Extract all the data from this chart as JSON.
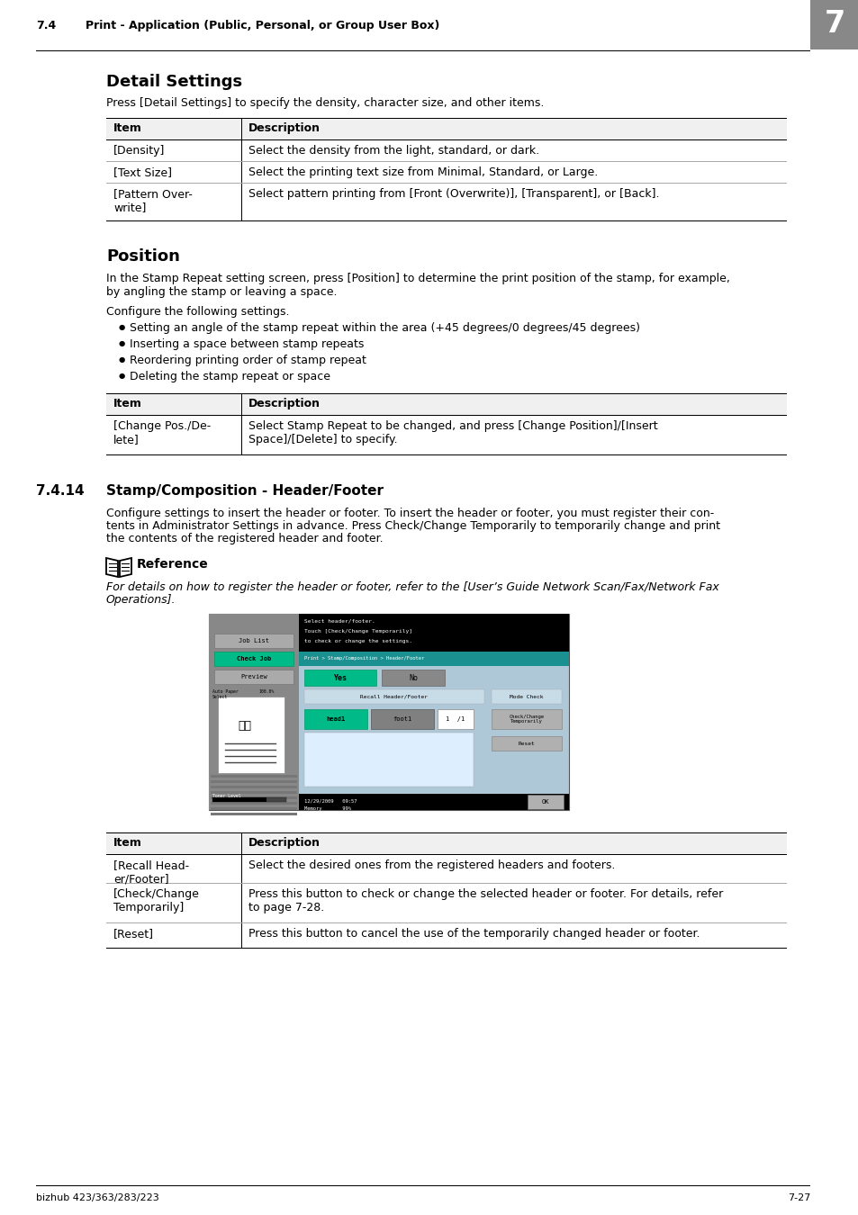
{
  "page_header_section": "7.4",
  "page_header_text": "Print - Application (Public, Personal, or Group User Box)",
  "page_number_box": "7",
  "page_footer_left": "bizhub 423/363/283/223",
  "page_footer_right": "7-27",
  "bg_color": "#ffffff",
  "section1_title": "Detail Settings",
  "section1_intro": "Press [Detail Settings] to specify the density, character size, and other items.",
  "table1_rows": [
    [
      "[Density]",
      "Select the density from the light, standard, or dark."
    ],
    [
      "[Text Size]",
      "Select the printing text size from Minimal, Standard, or Large."
    ],
    [
      "[Pattern Over-\nwrite]",
      "Select pattern printing from [Front (Overwrite)], [Transparent], or [Back]."
    ]
  ],
  "section2_title": "Position",
  "section2_intro1": "In the Stamp Repeat setting screen, press [Position] to determine the print position of the stamp, for example,",
  "section2_intro2": "by angling the stamp or leaving a space.",
  "section2_configure": "Configure the following settings.",
  "section2_bullets": [
    "Setting an angle of the stamp repeat within the area (+45 degrees/0 degrees/45 degrees)",
    "Inserting a space between stamp repeats",
    "Reordering printing order of stamp repeat",
    "Deleting the stamp repeat or space"
  ],
  "table2_rows": [
    [
      "[Change Pos./De-\nlete]",
      "Select Stamp Repeat to be changed, and press [Change Position]/[Insert\nSpace]/[Delete] to specify."
    ]
  ],
  "section3_num": "7.4.14",
  "section3_title": "Stamp/Composition - Header/Footer",
  "section3_intro1": "Configure settings to insert the header or footer. To insert the header or footer, you must register their con-",
  "section3_intro2": "tents in Administrator Settings in advance. Press Check/Change Temporarily to temporarily change and print",
  "section3_intro3": "the contents of the registered header and footer.",
  "reference_title": "Reference",
  "reference_text1": "For details on how to register the header or footer, refer to the [User’s Guide Network Scan/Fax/Network Fax",
  "reference_text2": "Operations].",
  "table3_rows": [
    [
      "[Recall Head-\ner/Footer]",
      "Select the desired ones from the registered headers and footers."
    ],
    [
      "[Check/Change\nTemporarily]",
      "Press this button to check or change the selected header or footer. For details, refer\nto page 7-28."
    ],
    [
      "[Reset]",
      "Press this button to cancel the use of the temporarily changed header or footer."
    ]
  ],
  "screenshot": {
    "left_bg": "#888888",
    "right_bg": "#aec8d8",
    "black_bar": "#000000",
    "teal_bar": "#1a9090",
    "yes_green": "#00bb88",
    "recall_section_bg": "#c8dce8",
    "head1_green": "#00bb88",
    "foot1_gray": "#808080",
    "btn_gray": "#b0b0b0",
    "ok_gray": "#b0b0b0",
    "bottom_bar": "#000000"
  }
}
